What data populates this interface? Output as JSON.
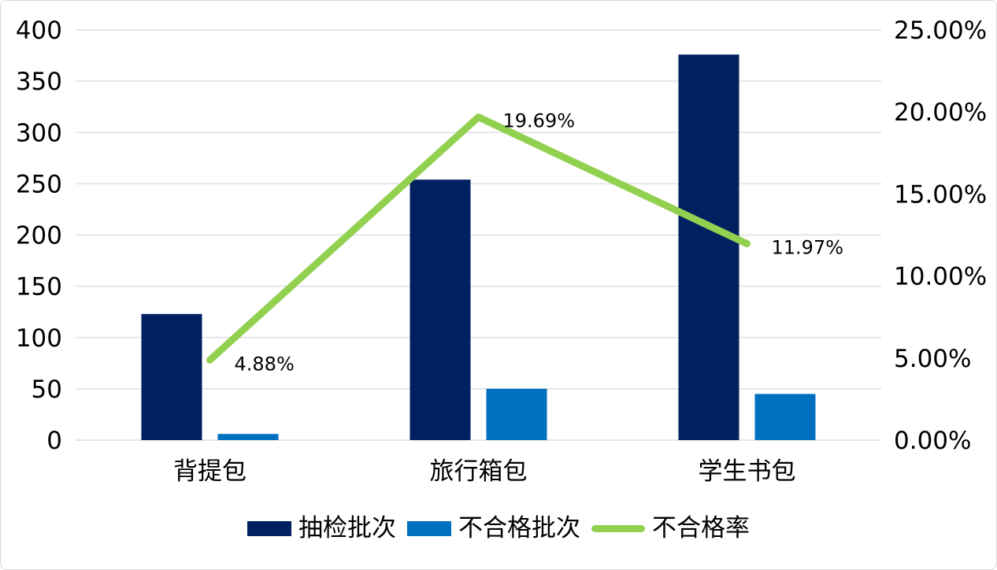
{
  "chart_data": {
    "type": "combo-bar-line",
    "title": "",
    "categories": [
      "背提包",
      "旅行箱包",
      "学生书包"
    ],
    "series": [
      {
        "name": "抽检批次",
        "type": "bar",
        "axis": "left",
        "color": "#002060",
        "values": [
          123,
          254,
          376
        ]
      },
      {
        "name": "不合格批次",
        "type": "bar",
        "axis": "left",
        "color": "#0070C0",
        "values": [
          6,
          50,
          45
        ]
      },
      {
        "name": "不合格率",
        "type": "line",
        "axis": "right",
        "color": "#92D050",
        "values": [
          4.88,
          19.69,
          11.97
        ],
        "point_labels": [
          "4.88%",
          "19.69%",
          "11.97%"
        ]
      }
    ],
    "left_axis": {
      "min": 0,
      "max": 400,
      "step": 50,
      "tick_labels": [
        "0",
        "50",
        "100",
        "150",
        "200",
        "250",
        "300",
        "350",
        "400"
      ]
    },
    "right_axis": {
      "min": 0,
      "max": 25,
      "step": 5,
      "tick_labels": [
        "0.00%",
        "5.00%",
        "10.00%",
        "15.00%",
        "20.00%",
        "25.00%"
      ]
    },
    "grid": "horizontal-only",
    "gridline_color": "#E6E6E6",
    "text_color": "#000000",
    "background_color": "#FFFFFF",
    "legend_position": "bottom"
  }
}
